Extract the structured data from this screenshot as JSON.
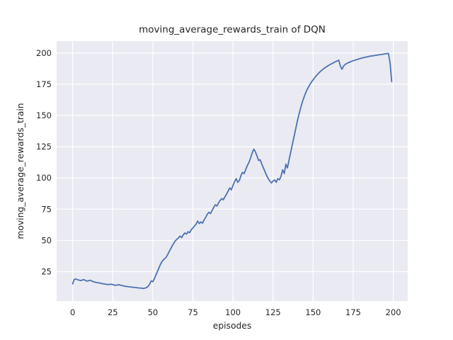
{
  "chart_data": {
    "type": "line",
    "title": "moving_average_rewards_train of DQN",
    "xlabel": "episodes",
    "ylabel": "moving_average_rewards_train",
    "x_ticks": [
      0,
      25,
      50,
      75,
      100,
      125,
      150,
      175,
      200
    ],
    "y_ticks": [
      25,
      50,
      75,
      100,
      125,
      150,
      175,
      200
    ],
    "xlim": [
      -10,
      209
    ],
    "ylim": [
      1.5,
      209.5
    ],
    "grid": true,
    "legend_position": "none",
    "style": {
      "figure_bg": "#ffffff",
      "axes_bg": "#eaeaf2",
      "grid_color": "#ffffff",
      "line_color": "#4c72b0",
      "text_color": "#262626",
      "line_width": 1.8
    },
    "series": [
      {
        "name": "moving_average_rewards_train",
        "x_start": 0,
        "x_step": 1,
        "values": [
          15.2,
          18.8,
          19.1,
          18.6,
          18.2,
          17.9,
          18.3,
          18.6,
          18.0,
          17.4,
          17.9,
          18.1,
          17.5,
          16.9,
          16.6,
          16.3,
          16.1,
          15.9,
          15.6,
          15.3,
          15.1,
          14.9,
          14.6,
          14.8,
          15.0,
          14.7,
          14.3,
          14.0,
          14.4,
          14.6,
          14.1,
          13.8,
          13.5,
          13.3,
          13.1,
          12.9,
          12.8,
          12.6,
          12.5,
          12.3,
          12.2,
          12.0,
          11.9,
          11.8,
          11.6,
          11.8,
          12.2,
          13.2,
          15.0,
          17.6,
          17.0,
          19.5,
          22.5,
          25.5,
          28.5,
          31.5,
          33.5,
          35.0,
          36.0,
          38.0,
          40.5,
          43.0,
          45.5,
          47.5,
          49.5,
          51.0,
          52.0,
          53.5,
          52.3,
          54.5,
          56.0,
          55.0,
          57.0,
          56.2,
          58.5,
          60.0,
          61.5,
          63.0,
          65.5,
          63.5,
          64.8,
          63.8,
          66.5,
          68.5,
          71.0,
          72.5,
          71.5,
          74.0,
          76.5,
          78.5,
          77.5,
          80.0,
          82.0,
          83.5,
          82.5,
          85.0,
          87.0,
          89.5,
          92.0,
          90.5,
          94.0,
          97.0,
          99.5,
          96.5,
          98.0,
          102.0,
          104.5,
          103.5,
          107.0,
          110.0,
          112.5,
          116.0,
          120.0,
          123.0,
          121.0,
          117.5,
          114.0,
          114.5,
          111.0,
          108.0,
          105.0,
          102.0,
          99.5,
          97.5,
          96.0,
          97.5,
          98.5,
          96.5,
          99.5,
          98.5,
          101.5,
          106.5,
          103.5,
          111.0,
          108.0,
          114.5,
          120.5,
          126.5,
          132.5,
          138.5,
          144.5,
          150.0,
          155.0,
          159.5,
          163.5,
          167.0,
          170.0,
          172.5,
          174.8,
          176.8,
          178.5,
          180.2,
          181.8,
          183.2,
          184.5,
          185.7,
          186.8,
          187.8,
          188.7,
          189.5,
          190.3,
          191.0,
          191.7,
          192.4,
          193.0,
          193.6,
          194.2,
          189.5,
          187.0,
          189.5,
          190.8,
          191.6,
          192.2,
          192.8,
          193.3,
          193.8,
          194.2,
          194.6,
          195.0,
          195.4,
          195.8,
          196.1,
          196.4,
          196.7,
          197.0,
          197.3,
          197.5,
          197.7,
          197.9,
          198.1,
          198.3,
          198.5,
          198.7,
          198.9,
          199.1,
          199.3,
          199.5,
          199.6,
          192.0,
          177.0
        ]
      }
    ]
  }
}
